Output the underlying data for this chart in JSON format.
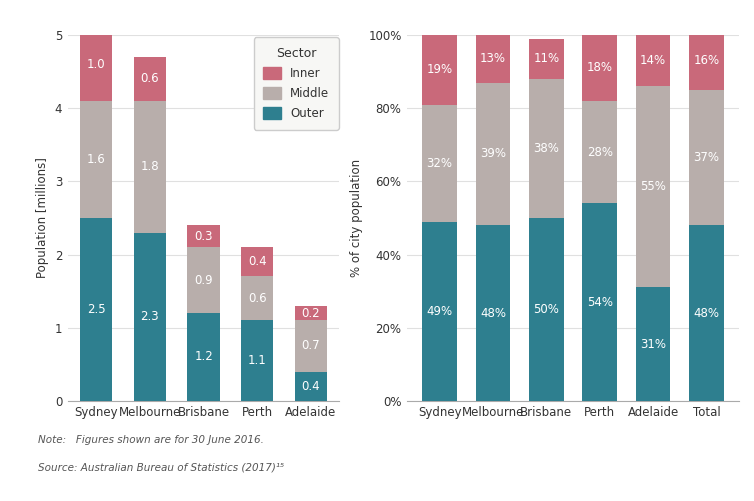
{
  "cities_abs": [
    "Sydney",
    "Melbourne",
    "Brisbane",
    "Perth",
    "Adelaide"
  ],
  "abs_outer": [
    2.5,
    2.3,
    1.2,
    1.1,
    0.4
  ],
  "abs_middle": [
    1.6,
    1.8,
    0.9,
    0.6,
    0.7
  ],
  "abs_inner": [
    1.0,
    0.6,
    0.3,
    0.4,
    0.2
  ],
  "cities_pct": [
    "Sydney",
    "Melbourne",
    "Brisbane",
    "Perth",
    "Adelaide",
    "Total"
  ],
  "pct_outer": [
    49,
    48,
    50,
    54,
    31,
    48
  ],
  "pct_middle": [
    32,
    39,
    38,
    28,
    55,
    37
  ],
  "pct_inner": [
    19,
    13,
    11,
    18,
    14,
    16
  ],
  "color_inner": "#c9697a",
  "color_middle": "#b8aeab",
  "color_outer": "#2e7f8f",
  "ylabel_left": "Population [millions]",
  "ylabel_right": "% of city population",
  "ylim_left": [
    0,
    5
  ],
  "ylim_right": [
    0,
    100
  ],
  "legend_title": "Sector",
  "legend_labels": [
    "Inner",
    "Middle",
    "Outer"
  ],
  "note": "Note:   Figures shown are for 30 June 2016.",
  "source": "Source: Australian Bureau of Statistics (2017)¹⁵",
  "background_color": "#ffffff",
  "grid_color": "#e0e0e0",
  "text_color_label": "#777777"
}
